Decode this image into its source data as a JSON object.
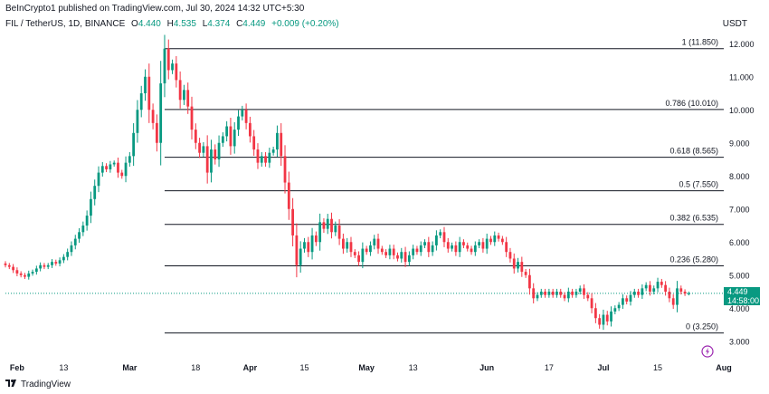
{
  "header": {
    "published": "BeInCrypto1 published on TradingView.com, Jul 30, 2024 14:32 UTC+5:30",
    "symbol": "FIL / TetherUS, 1D, BINANCE",
    "o_label": "O",
    "o": "4.440",
    "h_label": "H",
    "h": "4.535",
    "l_label": "L",
    "l": "4.374",
    "c_label": "C",
    "c": "4.449",
    "change": "+0.009 (+0.20%)",
    "currency": "USDT"
  },
  "price_tag": {
    "price": "4.449",
    "countdown": "14:58:00"
  },
  "footer": {
    "brand": "TradingView"
  },
  "colors": {
    "up": "#089981",
    "down": "#f23645",
    "fib_line": "#131722",
    "bolt": "#9c27b0"
  },
  "icons": {
    "brand_logo": "tradingview-logo-icon",
    "bolt": "lightning-bolt-icon"
  },
  "chart_data": {
    "type": "candlestick",
    "title": "FIL / TetherUS, 1D, BINANCE",
    "x_axis": {
      "type": "date",
      "range": [
        "2024-01-29",
        "2024-08-01"
      ],
      "ticks": [
        {
          "date": "2024-02-01",
          "label": "Feb"
        },
        {
          "date": "2024-02-13",
          "label": "13"
        },
        {
          "date": "2024-03-01",
          "label": "Mar"
        },
        {
          "date": "2024-03-18",
          "label": "18"
        },
        {
          "date": "2024-04-01",
          "label": "Apr"
        },
        {
          "date": "2024-04-15",
          "label": "15"
        },
        {
          "date": "2024-05-01",
          "label": "May"
        },
        {
          "date": "2024-05-13",
          "label": "13"
        },
        {
          "date": "2024-06-01",
          "label": "Jun"
        },
        {
          "date": "2024-06-17",
          "label": "17"
        },
        {
          "date": "2024-07-01",
          "label": "Jul"
        },
        {
          "date": "2024-07-15",
          "label": "15"
        },
        {
          "date": "2024-08-01",
          "label": "Aug"
        }
      ]
    },
    "y_axis": {
      "position": "right",
      "range": [
        2.5,
        12.5
      ],
      "ticks": [
        {
          "value": 3,
          "label": "3.000"
        },
        {
          "value": 4,
          "label": "4.000"
        },
        {
          "value": 5,
          "label": "5.000"
        },
        {
          "value": 6,
          "label": "6.000"
        },
        {
          "value": 7,
          "label": "7.000"
        },
        {
          "value": 8,
          "label": "8.000"
        },
        {
          "value": 9,
          "label": "9.000"
        },
        {
          "value": 10,
          "label": "10.000"
        },
        {
          "value": 11,
          "label": "11.000"
        },
        {
          "value": 12,
          "label": "12.000"
        }
      ]
    },
    "fib_levels": {
      "start_date": "2024-03-10",
      "levels": [
        {
          "value": 11.85,
          "label": "1 (11.850)"
        },
        {
          "value": 10.01,
          "label": "0.786 (10.010)"
        },
        {
          "value": 8.565,
          "label": "0.618 (8.565)"
        },
        {
          "value": 7.55,
          "label": "0.5 (7.550)"
        },
        {
          "value": 6.535,
          "label": "0.382 (6.535)"
        },
        {
          "value": 5.28,
          "label": "0.236 (5.280)"
        },
        {
          "value": 3.25,
          "label": "0 (3.250)"
        }
      ]
    },
    "last_price": 4.449,
    "start_date": "2024-01-29",
    "closes": [
      5.3,
      5.25,
      5.15,
      5.05,
      5.0,
      4.95,
      5.05,
      5.1,
      5.2,
      5.3,
      5.25,
      5.3,
      5.4,
      5.35,
      5.45,
      5.55,
      5.7,
      5.9,
      6.1,
      6.3,
      6.5,
      6.8,
      7.3,
      7.7,
      8.1,
      8.3,
      8.2,
      8.35,
      8.4,
      8.1,
      8.0,
      8.4,
      8.6,
      9.3,
      10.0,
      10.5,
      11.0,
      10.0,
      9.6,
      9.0,
      10.8,
      11.85,
      11.2,
      11.4,
      10.9,
      10.3,
      10.6,
      10.1,
      9.4,
      9.0,
      8.7,
      8.9,
      8.1,
      8.8,
      8.5,
      9.0,
      9.2,
      9.5,
      8.9,
      9.4,
      9.8,
      10.0,
      9.6,
      9.2,
      8.8,
      8.4,
      8.6,
      8.4,
      8.7,
      8.8,
      9.3,
      8.6,
      7.8,
      7.0,
      6.2,
      5.3,
      5.8,
      6.0,
      5.7,
      6.2,
      6.0,
      6.6,
      6.4,
      6.7,
      6.3,
      6.5,
      6.1,
      5.8,
      6.0,
      5.7,
      5.6,
      5.4,
      5.8,
      5.7,
      5.9,
      6.1,
      5.8,
      5.7,
      5.6,
      5.8,
      5.6,
      5.5,
      5.7,
      5.4,
      5.6,
      5.8,
      5.7,
      5.9,
      6.0,
      5.7,
      5.9,
      6.2,
      6.3,
      6.0,
      5.8,
      5.9,
      5.7,
      6.0,
      5.9,
      5.8,
      5.7,
      5.9,
      6.0,
      5.8,
      6.1,
      6.0,
      6.2,
      6.1,
      6.0,
      5.7,
      5.5,
      5.2,
      5.4,
      5.1,
      5.0,
      4.6,
      4.3,
      4.4,
      4.5,
      4.4,
      4.5,
      4.4,
      4.5,
      4.4,
      4.3,
      4.5,
      4.4,
      4.5,
      4.6,
      4.4,
      4.3,
      4.0,
      3.7,
      3.5,
      3.8,
      3.6,
      3.9,
      4.0,
      4.1,
      4.3,
      4.2,
      4.4,
      4.5,
      4.4,
      4.6,
      4.7,
      4.5,
      4.6,
      4.8,
      4.7,
      4.5,
      4.3,
      4.1,
      4.6,
      4.5,
      4.44,
      4.449
    ]
  }
}
